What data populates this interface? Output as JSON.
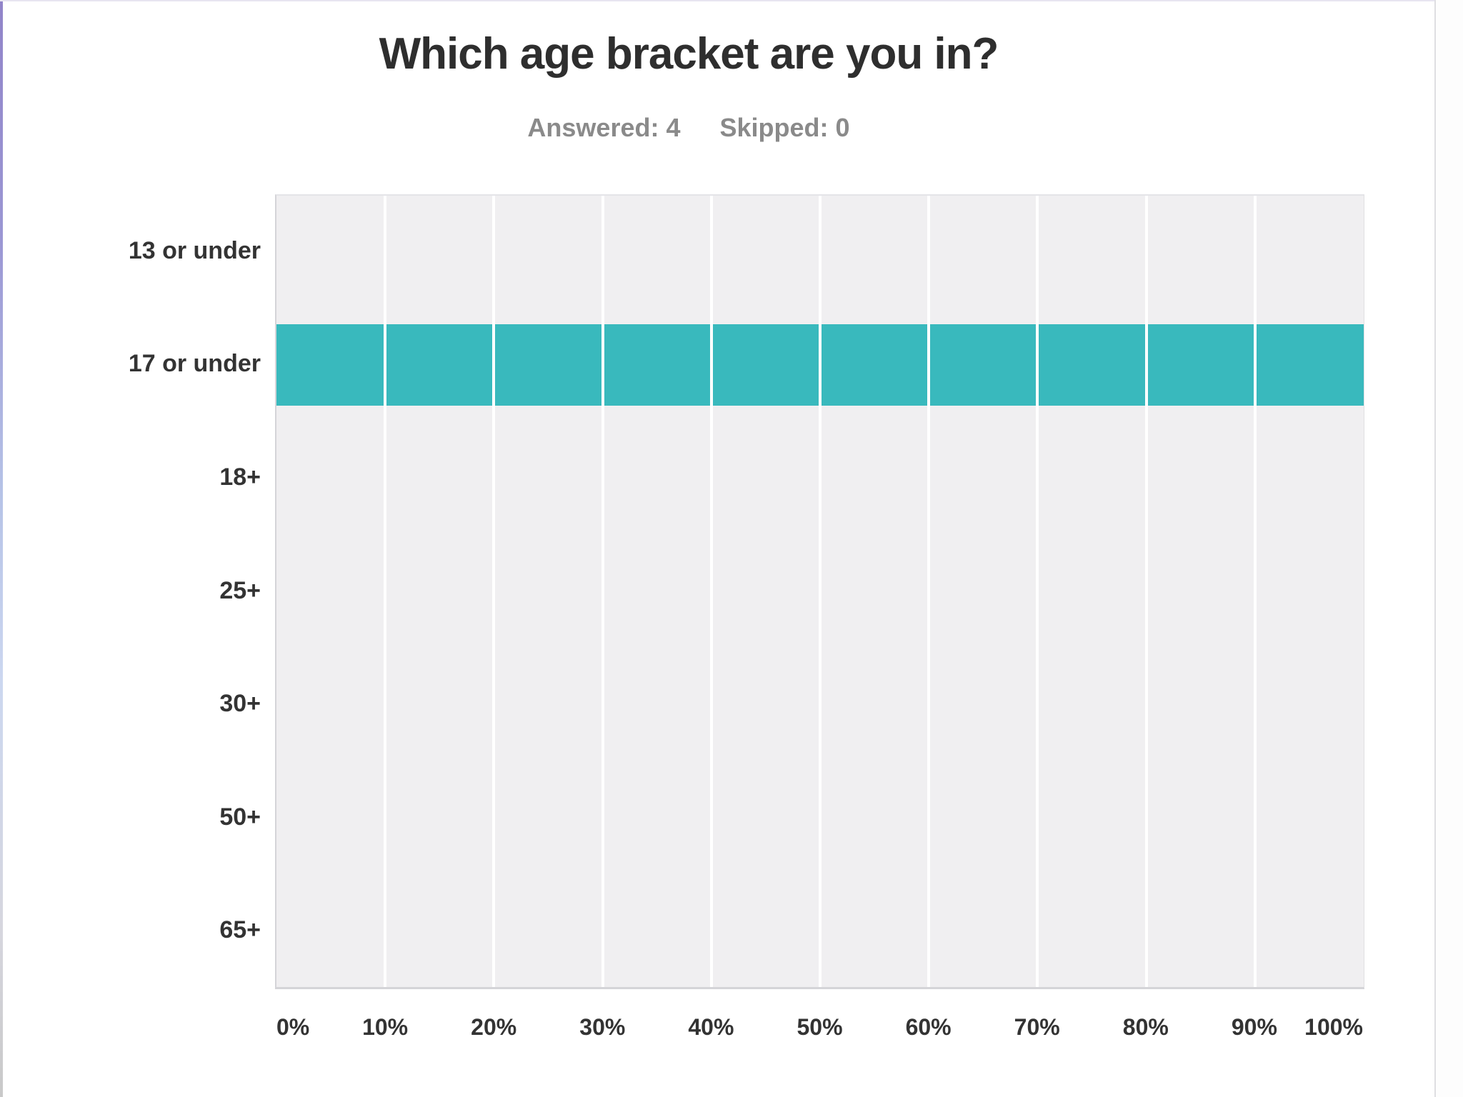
{
  "header": {
    "title": "Which age bracket are you in?",
    "stats": [
      {
        "label": "Answered:",
        "value": "4"
      },
      {
        "label": "Skipped:",
        "value": "0"
      }
    ]
  },
  "chart_data": {
    "type": "bar",
    "orientation": "horizontal",
    "title": "Which age bracket are you in?",
    "categories": [
      "13 or under",
      "17 or under",
      "18+",
      "25+",
      "30+",
      "50+",
      "65+"
    ],
    "values": [
      0,
      100,
      0,
      0,
      0,
      0,
      0
    ],
    "value_unit": "percent",
    "x_tick_labels": [
      "0%",
      "10%",
      "20%",
      "30%",
      "40%",
      "50%",
      "60%",
      "70%",
      "80%",
      "90%",
      "100%"
    ],
    "xlim": [
      0,
      100
    ],
    "grid": true,
    "legend": "none",
    "bar_color": "#39b9bd",
    "plot_background": "#f0eff1",
    "gridline_color": "#ffffff"
  }
}
